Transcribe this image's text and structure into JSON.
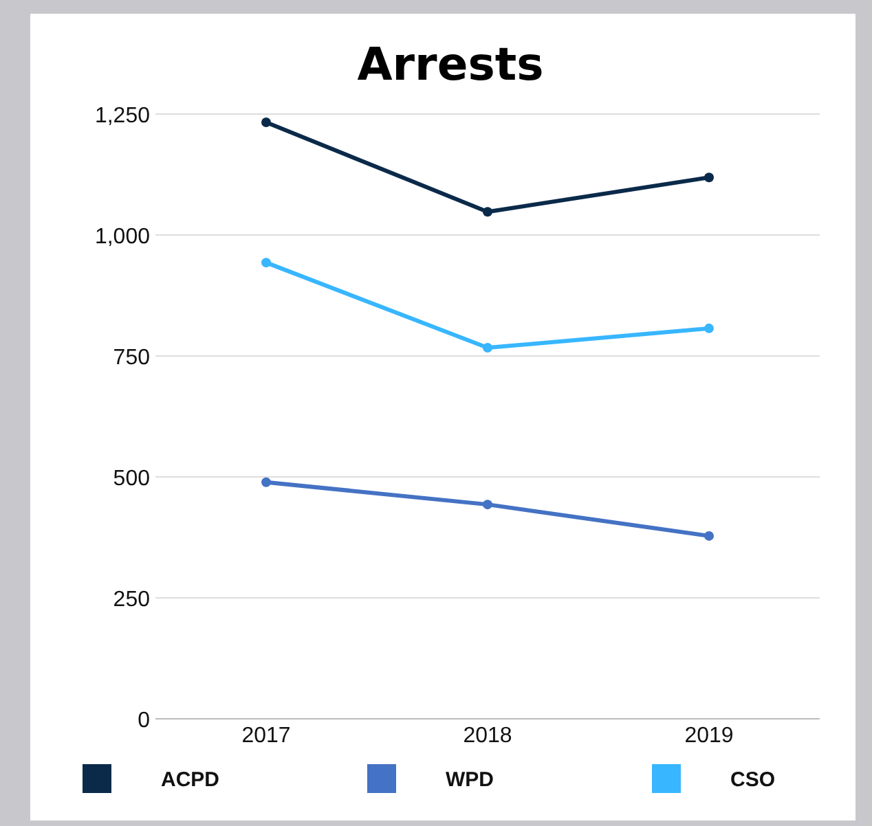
{
  "chart_data": {
    "type": "line",
    "title": "Arrests",
    "categories": [
      "2017",
      "2018",
      "2019"
    ],
    "series": [
      {
        "name": "ACPD",
        "color": "#0b2a4a",
        "values": [
          1233,
          1048,
          1119
        ]
      },
      {
        "name": "WPD",
        "color": "#4472c4",
        "values": [
          489,
          443,
          378
        ]
      },
      {
        "name": "CSO",
        "color": "#38b6ff",
        "values": [
          943,
          767,
          807
        ]
      }
    ],
    "ylim": [
      0,
      1250
    ],
    "yticks": [
      0,
      {
        "value": 250,
        "label": "250"
      },
      {
        "value": 500,
        "label": "500"
      },
      {
        "value": 750,
        "label": "750"
      },
      {
        "value": 1000,
        "label": "1,000"
      },
      {
        "value": 1250,
        "label": "1,250"
      }
    ],
    "grid": "y",
    "legend": "bottom",
    "marker": "circle",
    "line_style": "solid"
  }
}
